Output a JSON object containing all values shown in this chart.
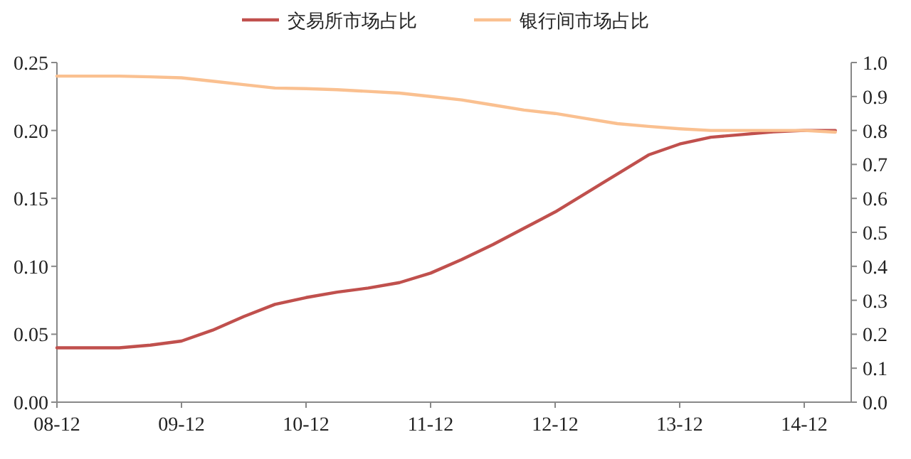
{
  "chart_data": {
    "type": "line",
    "categories": [
      "08-12",
      null,
      null,
      null,
      "09-12",
      null,
      null,
      null,
      "10-12",
      null,
      null,
      null,
      "11-12",
      null,
      null,
      null,
      "12-12",
      null,
      null,
      null,
      "13-12",
      null,
      null,
      null,
      "14-12",
      null
    ],
    "series": [
      {
        "name": "交易所市场占比",
        "color": "#c0504d",
        "values": [
          0.04,
          0.04,
          0.04,
          0.042,
          0.045,
          0.053,
          0.063,
          0.072,
          0.077,
          0.081,
          0.084,
          0.088,
          0.095,
          0.105,
          0.116,
          0.128,
          0.14,
          0.154,
          0.168,
          0.182,
          0.19,
          0.195,
          0.197,
          0.199,
          0.2,
          0.2
        ]
      },
      {
        "name": "银行间市场占比",
        "color": "#fac090",
        "axis": "y2",
        "values": [
          0.96,
          0.96,
          0.96,
          0.958,
          0.955,
          0.945,
          0.935,
          0.925,
          0.923,
          0.92,
          0.915,
          0.91,
          0.9,
          0.89,
          0.875,
          0.86,
          0.85,
          0.835,
          0.82,
          0.812,
          0.805,
          0.8,
          0.8,
          0.8,
          0.8,
          0.795
        ]
      }
    ],
    "ylim": [
      0,
      0.25
    ],
    "yticks": [
      {
        "value": 0,
        "label": "0.00"
      },
      {
        "value": 0.05,
        "label": "0.05"
      },
      {
        "value": 0.1,
        "label": "0.10"
      },
      {
        "value": 0.15,
        "label": "0.15"
      },
      {
        "value": 0.2,
        "label": "0.20"
      },
      {
        "value": 0.25,
        "label": "0.25"
      }
    ],
    "y2lim": [
      0,
      1
    ],
    "y2ticks": [
      {
        "value": 0,
        "label": "0.0"
      },
      {
        "value": 0.1,
        "label": "0.1"
      },
      {
        "value": 0.2,
        "label": "0.2"
      },
      {
        "value": 0.3,
        "label": "0.3"
      },
      {
        "value": 0.4,
        "label": "0.4"
      },
      {
        "value": 0.5,
        "label": "0.5"
      },
      {
        "value": 0.6,
        "label": "0.6"
      },
      {
        "value": 0.7,
        "label": "0.7"
      },
      {
        "value": 0.8,
        "label": "0.8"
      },
      {
        "value": 0.9,
        "label": "0.9"
      },
      {
        "value": 1,
        "label": "1.0"
      }
    ],
    "legend": "top",
    "grid": false,
    "marker": "none",
    "line_style": "solid"
  }
}
